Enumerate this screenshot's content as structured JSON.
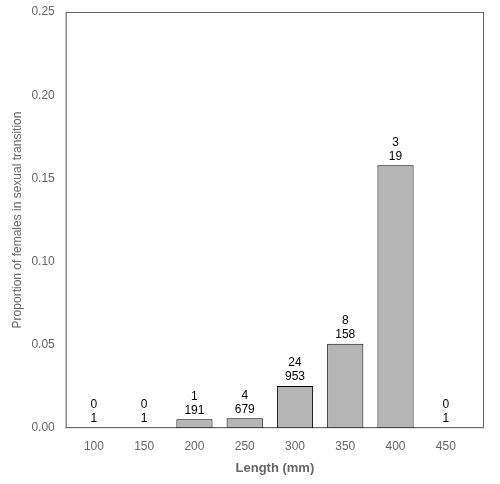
{
  "chart_data": {
    "type": "bar",
    "x": [
      100,
      150,
      200,
      250,
      300,
      350,
      400,
      450
    ],
    "values": [
      0.0,
      0.0,
      0.005236,
      0.00589,
      0.025184,
      0.050633,
      0.157895,
      0.0
    ],
    "transitions": [
      0,
      0,
      1,
      4,
      24,
      8,
      3,
      0
    ],
    "sample_sizes": [
      1,
      1,
      191,
      679,
      953,
      158,
      19,
      1
    ],
    "color": "#b5b5b5",
    "xlabel": "Length (mm)",
    "ylabel": "Proportion of females in sexual transition",
    "xlim": [
      72,
      488
    ],
    "xticks": [
      100,
      150,
      200,
      250,
      300,
      350,
      400,
      450
    ],
    "ylim": [
      0,
      0.25
    ],
    "yticks": [
      {
        "value": 0,
        "label": "0.00"
      },
      0.05,
      {
        "value": 0.1,
        "label": "0.10"
      },
      0.15,
      {
        "value": 0.2,
        "label": "0.20"
      },
      0.25
    ],
    "grid": false
  }
}
